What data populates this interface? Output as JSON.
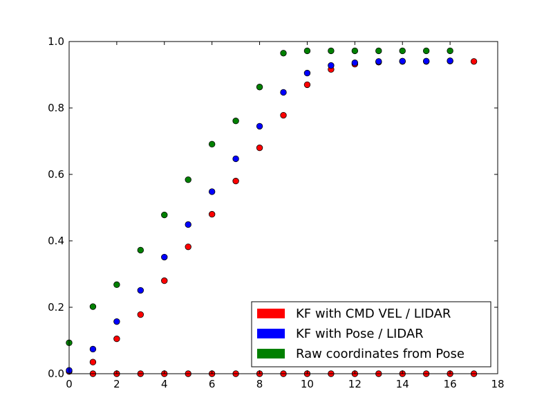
{
  "chart_data": {
    "type": "scatter",
    "title": "",
    "xlabel": "",
    "ylabel": "",
    "xlim": [
      0,
      18
    ],
    "ylim": [
      0,
      1.0
    ],
    "x_ticks": [
      "0",
      "2",
      "4",
      "6",
      "8",
      "10",
      "12",
      "14",
      "16",
      "18"
    ],
    "y_ticks": [
      "0.0",
      "0.2",
      "0.4",
      "0.6",
      "0.8",
      "1.0"
    ],
    "grid": false,
    "legend_position": "lower-right",
    "series": [
      {
        "name": "KF with CMD VEL / LIDAR",
        "color": "#ff0000",
        "points": [
          [
            0,
            0.007
          ],
          [
            1,
            0.035
          ],
          [
            2,
            0.105
          ],
          [
            3,
            0.178
          ],
          [
            4,
            0.28
          ],
          [
            5,
            0.382
          ],
          [
            6,
            0.48
          ],
          [
            7,
            0.58
          ],
          [
            8,
            0.68
          ],
          [
            9,
            0.778
          ],
          [
            10,
            0.87
          ],
          [
            11,
            0.916
          ],
          [
            12,
            0.932
          ],
          [
            13,
            0.938
          ],
          [
            14,
            0.94
          ],
          [
            15,
            0.94
          ],
          [
            16,
            0.941
          ],
          [
            17,
            0.94
          ],
          [
            1,
            0.0
          ],
          [
            2,
            0.0
          ],
          [
            3,
            0.0
          ],
          [
            4,
            0.0
          ],
          [
            5,
            0.0
          ],
          [
            6,
            0.0
          ],
          [
            7,
            0.0
          ],
          [
            8,
            0.0
          ],
          [
            9,
            0.0
          ],
          [
            10,
            0.0
          ],
          [
            11,
            0.0
          ],
          [
            12,
            0.0
          ],
          [
            13,
            0.0
          ],
          [
            14,
            0.0
          ],
          [
            15,
            0.0
          ],
          [
            16,
            0.0
          ],
          [
            17,
            0.0
          ]
        ]
      },
      {
        "name": "KF with Pose / LIDAR",
        "color": "#0000ff",
        "points": [
          [
            0,
            0.01
          ],
          [
            1,
            0.074
          ],
          [
            2,
            0.157
          ],
          [
            3,
            0.251
          ],
          [
            4,
            0.351
          ],
          [
            5,
            0.449
          ],
          [
            6,
            0.548
          ],
          [
            7,
            0.647
          ],
          [
            8,
            0.745
          ],
          [
            9,
            0.847
          ],
          [
            10,
            0.905
          ],
          [
            11,
            0.928
          ],
          [
            12,
            0.936
          ],
          [
            13,
            0.94
          ],
          [
            14,
            0.941
          ],
          [
            15,
            0.941
          ],
          [
            16,
            0.942
          ]
        ]
      },
      {
        "name": "Raw coordinates from Pose",
        "color": "#008000",
        "points": [
          [
            0,
            0.093
          ],
          [
            1,
            0.202
          ],
          [
            2,
            0.268
          ],
          [
            3,
            0.372
          ],
          [
            4,
            0.478
          ],
          [
            5,
            0.584
          ],
          [
            6,
            0.691
          ],
          [
            7,
            0.761
          ],
          [
            8,
            0.863
          ],
          [
            9,
            0.965
          ],
          [
            10,
            0.972
          ],
          [
            11,
            0.972
          ],
          [
            12,
            0.972
          ],
          [
            13,
            0.972
          ],
          [
            14,
            0.972
          ],
          [
            15,
            0.972
          ],
          [
            16,
            0.972
          ]
        ]
      }
    ]
  }
}
